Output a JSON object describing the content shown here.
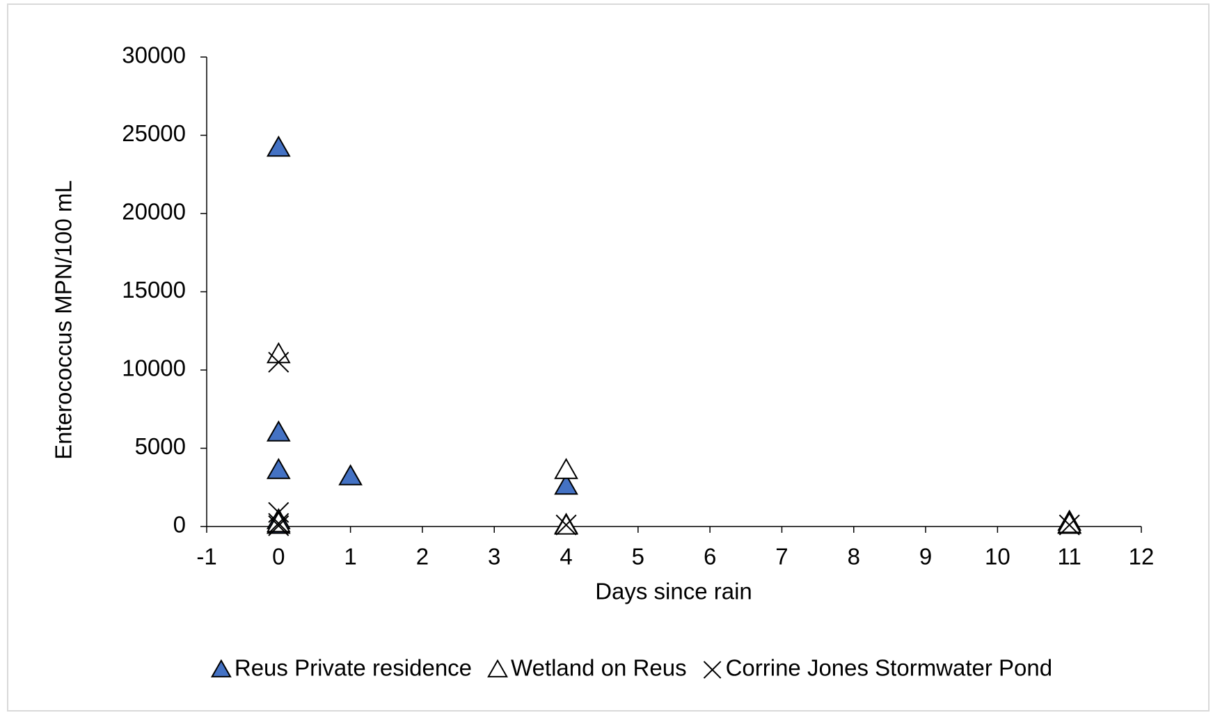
{
  "chart_data": {
    "type": "scatter",
    "x_label": "Days since rain",
    "y_label": "Enterococcus MPN/100 mL",
    "xlim": [
      -1,
      12
    ],
    "xticks": [
      -1,
      0,
      1,
      2,
      3,
      4,
      5,
      6,
      7,
      8,
      9,
      10,
      11,
      12
    ],
    "ylim": [
      0,
      30000
    ],
    "yticks": [
      0,
      5000,
      10000,
      15000,
      20000,
      25000,
      30000
    ],
    "grid": false,
    "legend": "bottom",
    "series": [
      {
        "name": "Reus Private residence",
        "color": "#4472c4",
        "marker": "triangle",
        "x": [
          0,
          0,
          0,
          0,
          0,
          1,
          4,
          4,
          11,
          11
        ],
        "values": [
          24200,
          6000,
          3600,
          400,
          100,
          3200,
          2600,
          100,
          300,
          100
        ]
      },
      {
        "name": "Wetland on Reus",
        "color": "#ffffff",
        "marker": "triangle",
        "x": [
          0,
          0,
          4,
          4,
          11
        ],
        "values": [
          11000,
          200,
          3600,
          50,
          150
        ]
      },
      {
        "name": "Corrine Jones Stormwater Pond",
        "color": "#000000",
        "marker": "x",
        "x": [
          0,
          0,
          0,
          0,
          4,
          11
        ],
        "values": [
          10500,
          900,
          200,
          50,
          100,
          100
        ]
      }
    ]
  }
}
